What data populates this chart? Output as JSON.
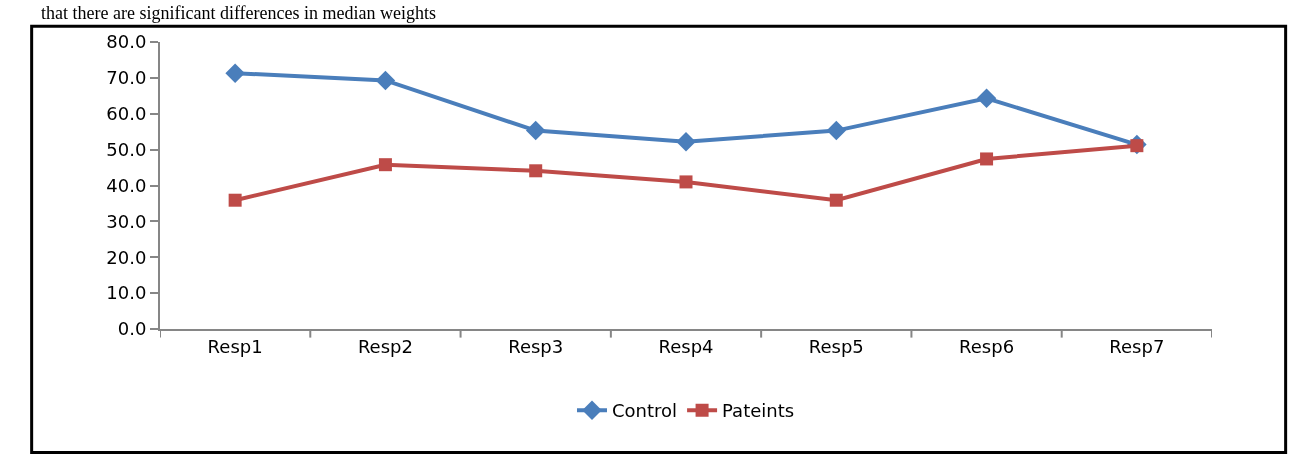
{
  "chart_data": {
    "type": "line",
    "annotations": [
      "that there are significant differences in median weights"
    ],
    "categories": [
      "Resp1",
      "Resp2",
      "Resp3",
      "Resp4",
      "Resp5",
      "Resp6",
      "Resp7"
    ],
    "series": [
      {
        "name": "Control",
        "color": "#4a7ebb",
        "marker": "diamond",
        "values": [
          71.3,
          69.3,
          55.3,
          52.2,
          55.3,
          64.3,
          51.4
        ]
      },
      {
        "name": "Pateints",
        "color": "#be4b48",
        "marker": "square",
        "values": [
          35.9,
          45.8,
          44.1,
          41.0,
          35.9,
          47.4,
          51.1
        ]
      }
    ],
    "ylim": [
      0,
      80
    ],
    "yticks": [
      {
        "value": 0,
        "label": "0.0"
      },
      {
        "value": 10,
        "label": "10.0"
      },
      {
        "value": 20,
        "label": "20.0"
      },
      {
        "value": 30,
        "label": "30.0"
      },
      {
        "value": 40,
        "label": "40.0"
      },
      {
        "value": 50,
        "label": "50.0"
      },
      {
        "value": 60,
        "label": "60.0"
      },
      {
        "value": 70,
        "label": "70.0"
      },
      {
        "value": 80,
        "label": "80.0"
      }
    ],
    "legend": "bottom",
    "line_style": "solid"
  }
}
